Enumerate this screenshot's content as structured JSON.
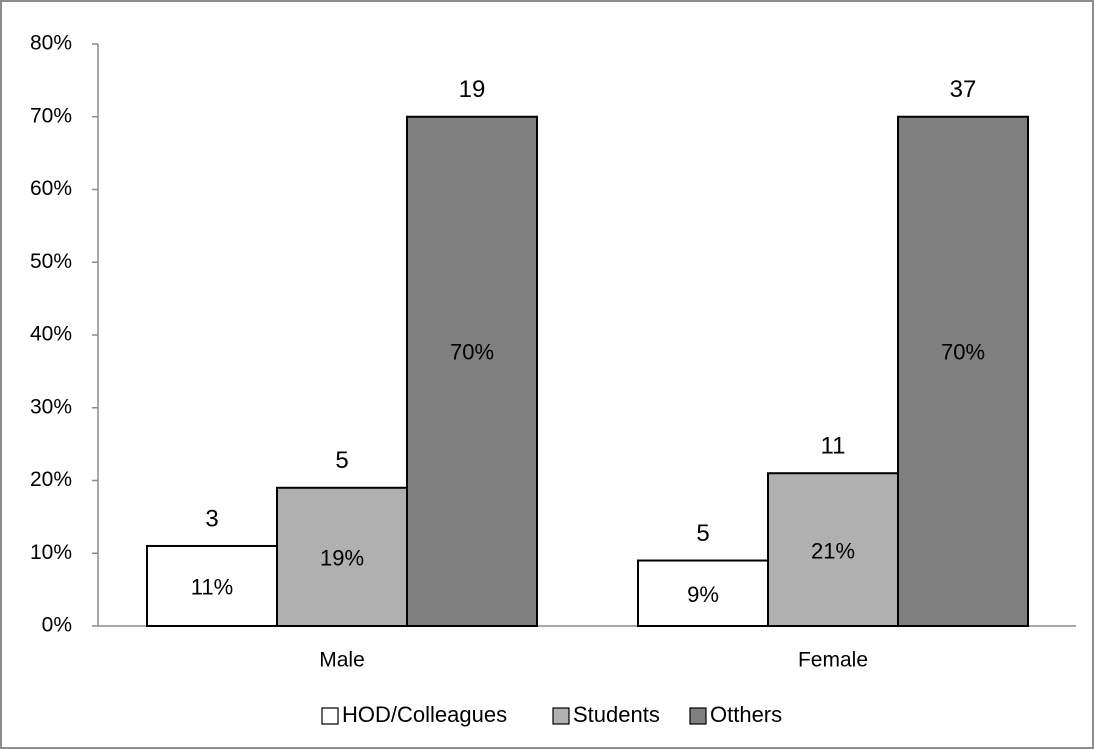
{
  "chart_data": {
    "type": "bar",
    "title": "",
    "xlabel": "",
    "ylabel": "",
    "categories": [
      "Male",
      "Female"
    ],
    "ylim": [
      0,
      80
    ],
    "yticks": [
      "0%",
      "10%",
      "20%",
      "30%",
      "40%",
      "50%",
      "60%",
      "70%",
      "80%"
    ],
    "grid": false,
    "legend_position": "bottom",
    "series": [
      {
        "name": "HOD/Colleagues",
        "color": "#ffffff",
        "values": [
          11,
          9
        ],
        "value_labels": [
          "11%",
          "9%"
        ],
        "count_labels": [
          "3",
          "5"
        ]
      },
      {
        "name": "Students",
        "color": "#b0b0b0",
        "values": [
          19,
          21
        ],
        "value_labels": [
          "19%",
          "21%"
        ],
        "count_labels": [
          "5",
          "11"
        ]
      },
      {
        "name": "Otthers",
        "color": "#808080",
        "values": [
          70,
          70
        ],
        "value_labels": [
          "70%",
          "70%"
        ],
        "count_labels": [
          "19",
          "37"
        ]
      }
    ]
  }
}
